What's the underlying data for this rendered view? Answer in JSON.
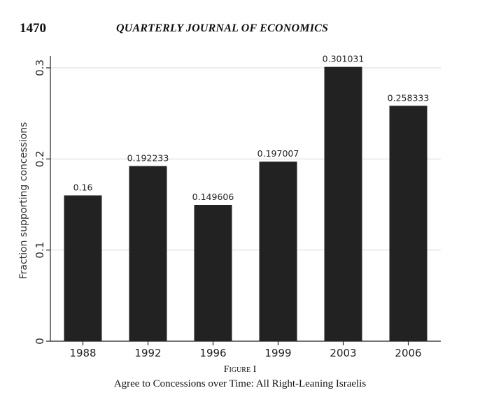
{
  "header": {
    "page_number": "1470",
    "journal_title": "QUARTERLY JOURNAL OF ECONOMICS"
  },
  "figure": {
    "number": "Figure I",
    "caption": "Agree to Concessions over Time: All Right-Leaning Israelis"
  },
  "chart_data": {
    "type": "bar",
    "categories": [
      "1988",
      "1992",
      "1996",
      "1999",
      "2003",
      "2006"
    ],
    "values": [
      0.16,
      0.192233,
      0.149606,
      0.197007,
      0.301031,
      0.258333
    ],
    "data_labels": [
      "0.16",
      "0.192233",
      "0.149606",
      "0.197007",
      "0.301031",
      "0.258333"
    ],
    "title": "",
    "xlabel": "",
    "ylabel": "Fraction supporting concessions",
    "ylim": [
      0,
      0.3
    ],
    "yticks": [
      0,
      0.1,
      0.2,
      0.3
    ],
    "ytick_labels": [
      "0",
      "0.1",
      "0.2",
      "0.3"
    ],
    "grid": true,
    "bar_color": "#222222",
    "grid_color": "#d9d9d9"
  }
}
